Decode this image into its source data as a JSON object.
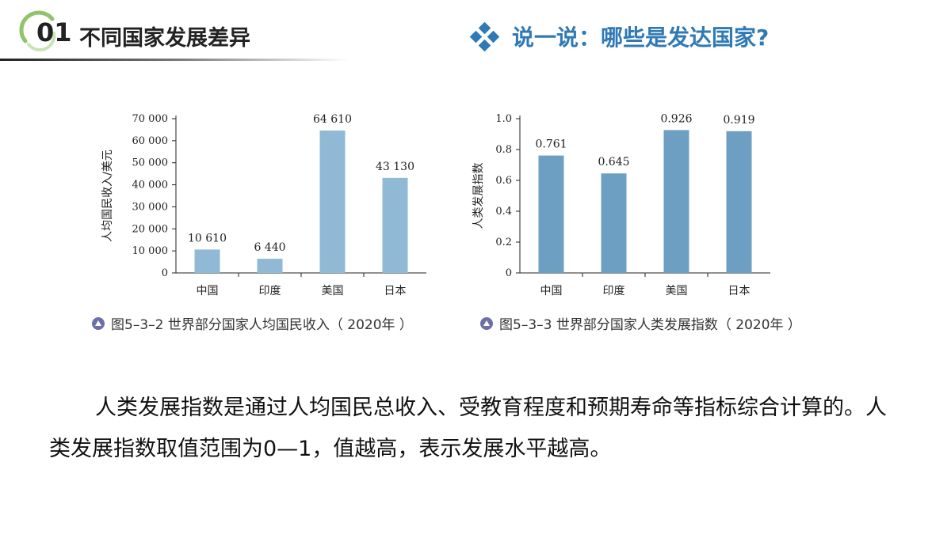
{
  "header": {
    "section_number": "01",
    "section_title": "不同国家发展差异",
    "prompt_title": "说一说：哪些是发达国家?",
    "prompt_color": "#2f79b5"
  },
  "captions": [
    "图5–3–2  世界部分国家人均国民收入（ 2020年 ）",
    "图5–3–3  世界部分国家人类发展指数（ 2020年 ）"
  ],
  "paragraph": "人类发展指数是通过人均国民总收入、受教育程度和预期寿命等指标综合计算的。人类发展指数取值范围为0—1，值越高，表示发展水平越高。",
  "chart_data": [
    {
      "type": "bar",
      "categories": [
        "中国",
        "印度",
        "美国",
        "日本"
      ],
      "values": [
        10610,
        6440,
        64610,
        43130
      ],
      "value_labels": [
        "10 610",
        "6 440",
        "64 610",
        "43 130"
      ],
      "ylabel": "人均国民收入/美元",
      "ylim": [
        0,
        70000
      ],
      "yticks": [
        0,
        10000,
        20000,
        30000,
        40000,
        50000,
        60000,
        70000
      ],
      "ytick_labels": [
        "0",
        "10 000",
        "20 000",
        "30 000",
        "40 000",
        "50 000",
        "60 000",
        "70 000"
      ],
      "bar_color": "#8fb9d4"
    },
    {
      "type": "bar",
      "categories": [
        "中国",
        "印度",
        "美国",
        "日本"
      ],
      "values": [
        0.761,
        0.645,
        0.926,
        0.919
      ],
      "value_labels": [
        "0.761",
        "0.645",
        "0.926",
        "0.919"
      ],
      "ylabel": "人类发展指数",
      "ylim": [
        0,
        1.0
      ],
      "yticks": [
        0,
        0.2,
        0.4,
        0.6,
        0.8,
        1.0
      ],
      "ytick_labels": [
        "0",
        "0.2",
        "0.4",
        "0.6",
        "0.8",
        "1.0"
      ],
      "bar_color": "#6d9fc3"
    }
  ]
}
